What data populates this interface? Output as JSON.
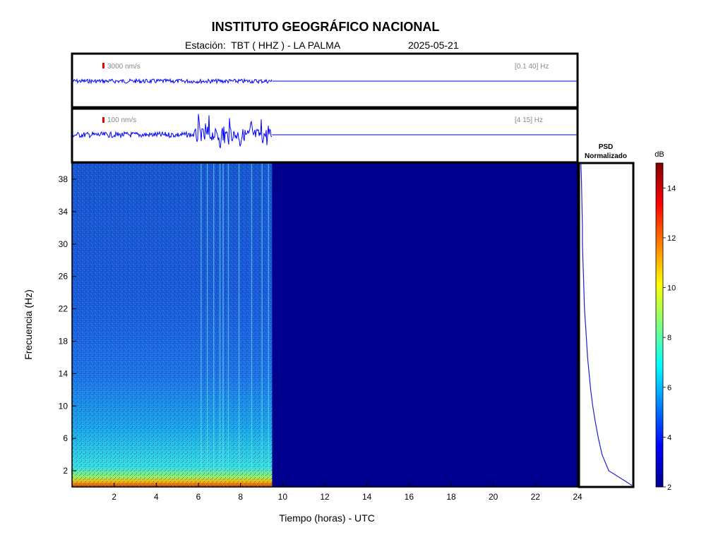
{
  "header": {
    "title": "INSTITUTO GEOGRÁFICO NACIONAL",
    "station": "Estación:  TBT ( HHZ ) - LA PALMA",
    "date": "2025-05-21"
  },
  "chart_data": [
    {
      "type": "line",
      "panel": "seismogram-broadband",
      "scale_label": "3000 nm/s",
      "filter_label": "[0.1 40]  Hz",
      "data_end_hour": 9.5,
      "amplitude_note": "steady low-amplitude band until data gap"
    },
    {
      "type": "line",
      "panel": "seismogram-filtered",
      "scale_label": "100 nm/s",
      "filter_label": "[4 15]  Hz",
      "data_end_hour": 9.5,
      "bursts_hours": [
        6.0,
        6.3,
        6.5,
        7.0,
        7.2,
        7.5,
        8.0,
        8.5,
        9.0,
        9.3
      ]
    },
    {
      "type": "heatmap",
      "panel": "spectrogram",
      "xlabel": "Tiempo (horas) - UTC",
      "ylabel": "Frecuencia  (Hz)",
      "xlim": [
        0,
        24
      ],
      "ylim": [
        0,
        40
      ],
      "xticks": [
        2,
        4,
        6,
        8,
        10,
        12,
        14,
        16,
        18,
        20,
        22,
        24
      ],
      "yticks": [
        2,
        6,
        10,
        14,
        18,
        22,
        26,
        30,
        34,
        38
      ],
      "data_end_hour": 9.5,
      "vertical_streaks_hours": [
        6.1,
        6.4,
        6.7,
        7.0,
        7.15,
        7.4,
        7.9,
        8.5,
        9.0,
        9.3
      ]
    },
    {
      "type": "line",
      "panel": "psd-normalized",
      "title": "PSD\nNormalizado",
      "freq": [
        40,
        38,
        35,
        32,
        30,
        28,
        26,
        24,
        22,
        20,
        18,
        16,
        14,
        12,
        10,
        8,
        6,
        4,
        2,
        1,
        0.2
      ],
      "value": [
        0.01,
        0.02,
        0.03,
        0.04,
        0.04,
        0.05,
        0.06,
        0.07,
        0.08,
        0.1,
        0.12,
        0.14,
        0.17,
        0.2,
        0.24,
        0.29,
        0.35,
        0.42,
        0.55,
        0.8,
        1.0
      ]
    },
    {
      "type": "heatmap",
      "panel": "colorbar",
      "unit_label": "dB",
      "range": [
        2,
        15
      ],
      "ticks": [
        2,
        4,
        6,
        8,
        10,
        12,
        14
      ]
    }
  ]
}
